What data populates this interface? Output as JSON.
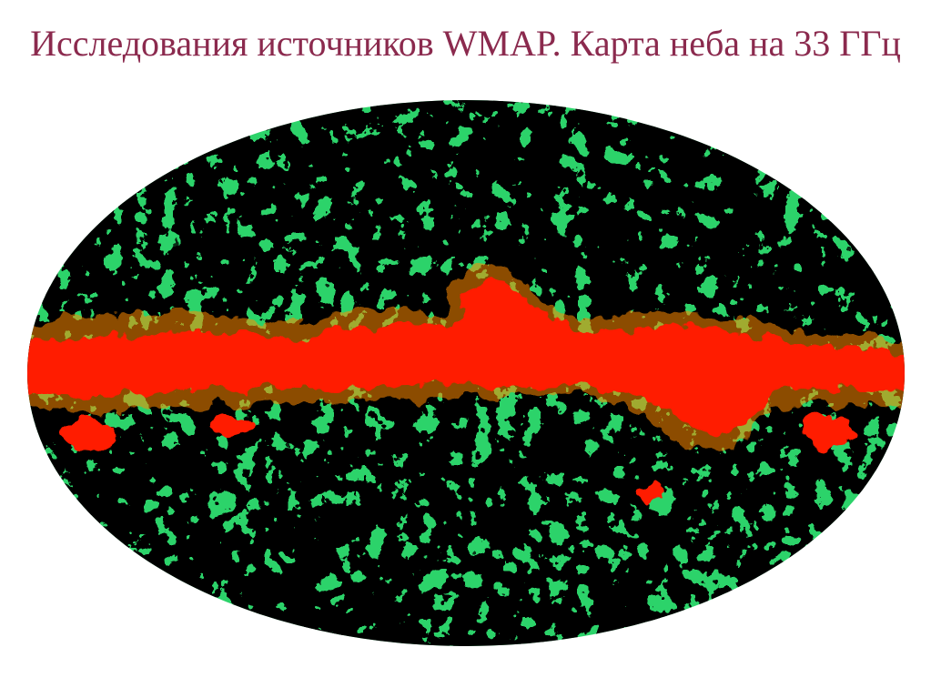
{
  "slide": {
    "title": "Исследования источников WMAP. Карта неба на 33 ГГц",
    "title_color": "#8b2a4e"
  },
  "sky_map": {
    "projection": "mollweide",
    "frequency_ghz": 33,
    "colors": {
      "galactic_plane": "#ff1a00",
      "hot": "#ff8a00",
      "warm": "#ffe600",
      "mid": "#2cd36a",
      "cool": "#00b4d8",
      "cold": "#1446d8",
      "coldest": "#0a1a8c"
    }
  }
}
